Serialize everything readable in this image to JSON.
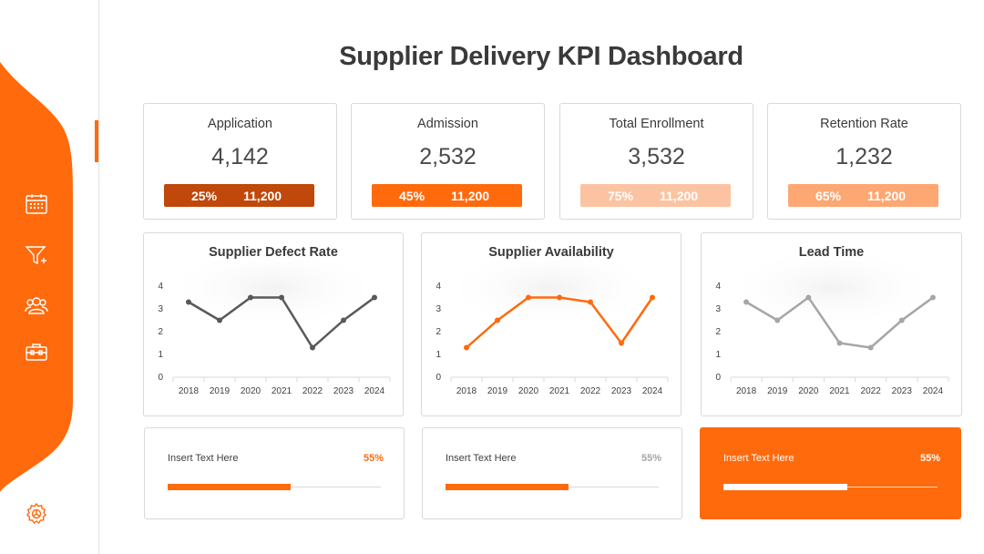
{
  "title": "Supplier Delivery KPI Dashboard",
  "colors": {
    "accent": "#ff6a0d",
    "dark_orange": "#c0480a",
    "light_orange": "#fcc3a2",
    "peach": "#fda772",
    "gray": "#a6a6a6",
    "dark_gray": "#595959"
  },
  "sidebar": {
    "icons": [
      "calendar-icon",
      "funnel-plus-icon",
      "users-icon",
      "toolbox-icon",
      "gear-icon"
    ]
  },
  "kpis": [
    {
      "label": "Application",
      "value": "4,142",
      "percent": "25%",
      "target": "11,200",
      "color": "#c0480a"
    },
    {
      "label": "Admission",
      "value": "2,532",
      "percent": "45%",
      "target": "11,200",
      "color": "#ff6a0d"
    },
    {
      "label": "Total Enrollment",
      "value": "3,532",
      "percent": "75%",
      "target": "11,200",
      "color": "#fcc3a2"
    },
    {
      "label": "Retention Rate",
      "value": "1,232",
      "percent": "65%",
      "target": "11,200",
      "color": "#fda772"
    }
  ],
  "chart_data": [
    {
      "type": "line",
      "title": "Supplier Defect Rate",
      "x": [
        "2018",
        "2019",
        "2020",
        "2021",
        "2022",
        "2023",
        "2024"
      ],
      "yticks": [
        "0",
        "1",
        "2",
        "3",
        "4"
      ],
      "ylim": [
        0,
        4
      ],
      "grid": false,
      "series": [
        {
          "values": [
            3.3,
            2.5,
            3.5,
            3.5,
            1.3,
            2.5,
            3.5
          ],
          "color": "#595959"
        }
      ]
    },
    {
      "type": "line",
      "title": "Supplier Availability",
      "x": [
        "2018",
        "2019",
        "2020",
        "2021",
        "2022",
        "2023",
        "2024"
      ],
      "yticks": [
        "0",
        "1",
        "2",
        "3",
        "4"
      ],
      "ylim": [
        0,
        4
      ],
      "grid": false,
      "series": [
        {
          "values": [
            1.3,
            2.5,
            3.5,
            3.5,
            3.3,
            1.5,
            3.5
          ],
          "color": "#ff6a0d"
        }
      ]
    },
    {
      "type": "line",
      "title": "Lead Time",
      "x": [
        "2018",
        "2019",
        "2020",
        "2021",
        "2022",
        "2023",
        "2024"
      ],
      "yticks": [
        "0",
        "1",
        "2",
        "3",
        "4"
      ],
      "ylim": [
        0,
        4
      ],
      "grid": false,
      "series": [
        {
          "values": [
            3.3,
            2.5,
            3.5,
            1.5,
            1.3,
            2.5,
            3.5
          ],
          "color": "#a6a6a6"
        }
      ]
    }
  ],
  "progress": [
    {
      "label": "Insert Text Here",
      "percent": "55%",
      "fraction": 0.55,
      "fill": "#ff6a0d",
      "pct_color": "#ff6a0d"
    },
    {
      "label": "Insert Text Here",
      "percent": "55%",
      "fraction": 0.55,
      "fill": "#ff6a0d",
      "pct_color": "#a6a6a6"
    },
    {
      "label": "Insert Text Here",
      "percent": "55%",
      "fraction": 0.55,
      "fill": "#ffffff",
      "pct_color": "#ffffff"
    }
  ]
}
